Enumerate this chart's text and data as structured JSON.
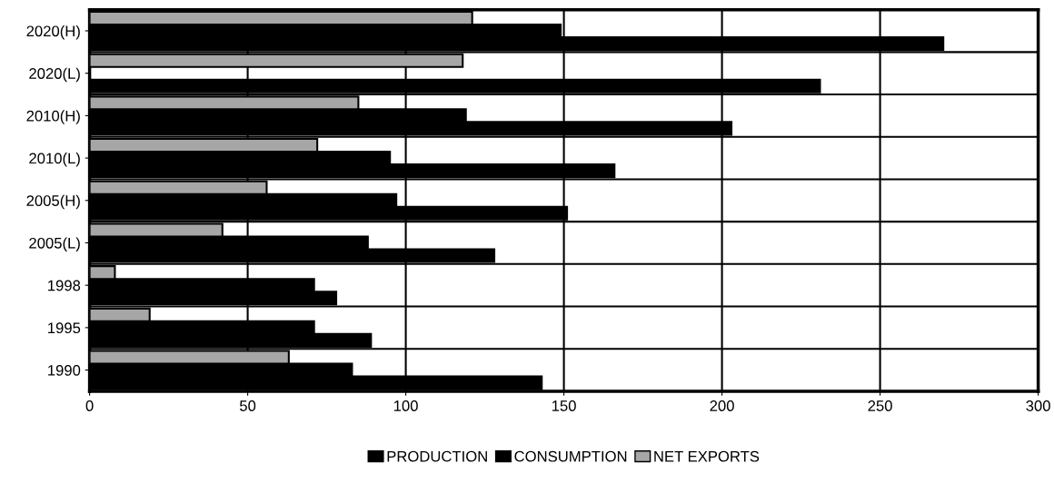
{
  "chart_data": {
    "type": "bar",
    "orientation": "horizontal",
    "categories": [
      "2020(H)",
      "2020(L)",
      "2010(H)",
      "2010(L)",
      "2005(H)",
      "2005(L)",
      "1998",
      "1995",
      "1990"
    ],
    "series": [
      {
        "name": "PRODUCTION",
        "color": "#000000",
        "values": [
          270,
          231,
          203,
          166,
          151,
          128,
          78,
          89,
          143
        ]
      },
      {
        "name": "CONSUMPTION",
        "color": "#000000",
        "values": [
          149,
          null,
          119,
          95,
          97,
          88,
          71,
          71,
          83
        ]
      },
      {
        "name": "NET EXPORTS",
        "color": "#a6a6a6",
        "values": [
          121,
          118,
          85,
          72,
          56,
          42,
          8,
          19,
          63
        ]
      }
    ],
    "xlim": [
      0,
      300
    ],
    "xticks": [
      0,
      50,
      100,
      150,
      200,
      250,
      300
    ],
    "grid": true,
    "legend": "bottom"
  }
}
